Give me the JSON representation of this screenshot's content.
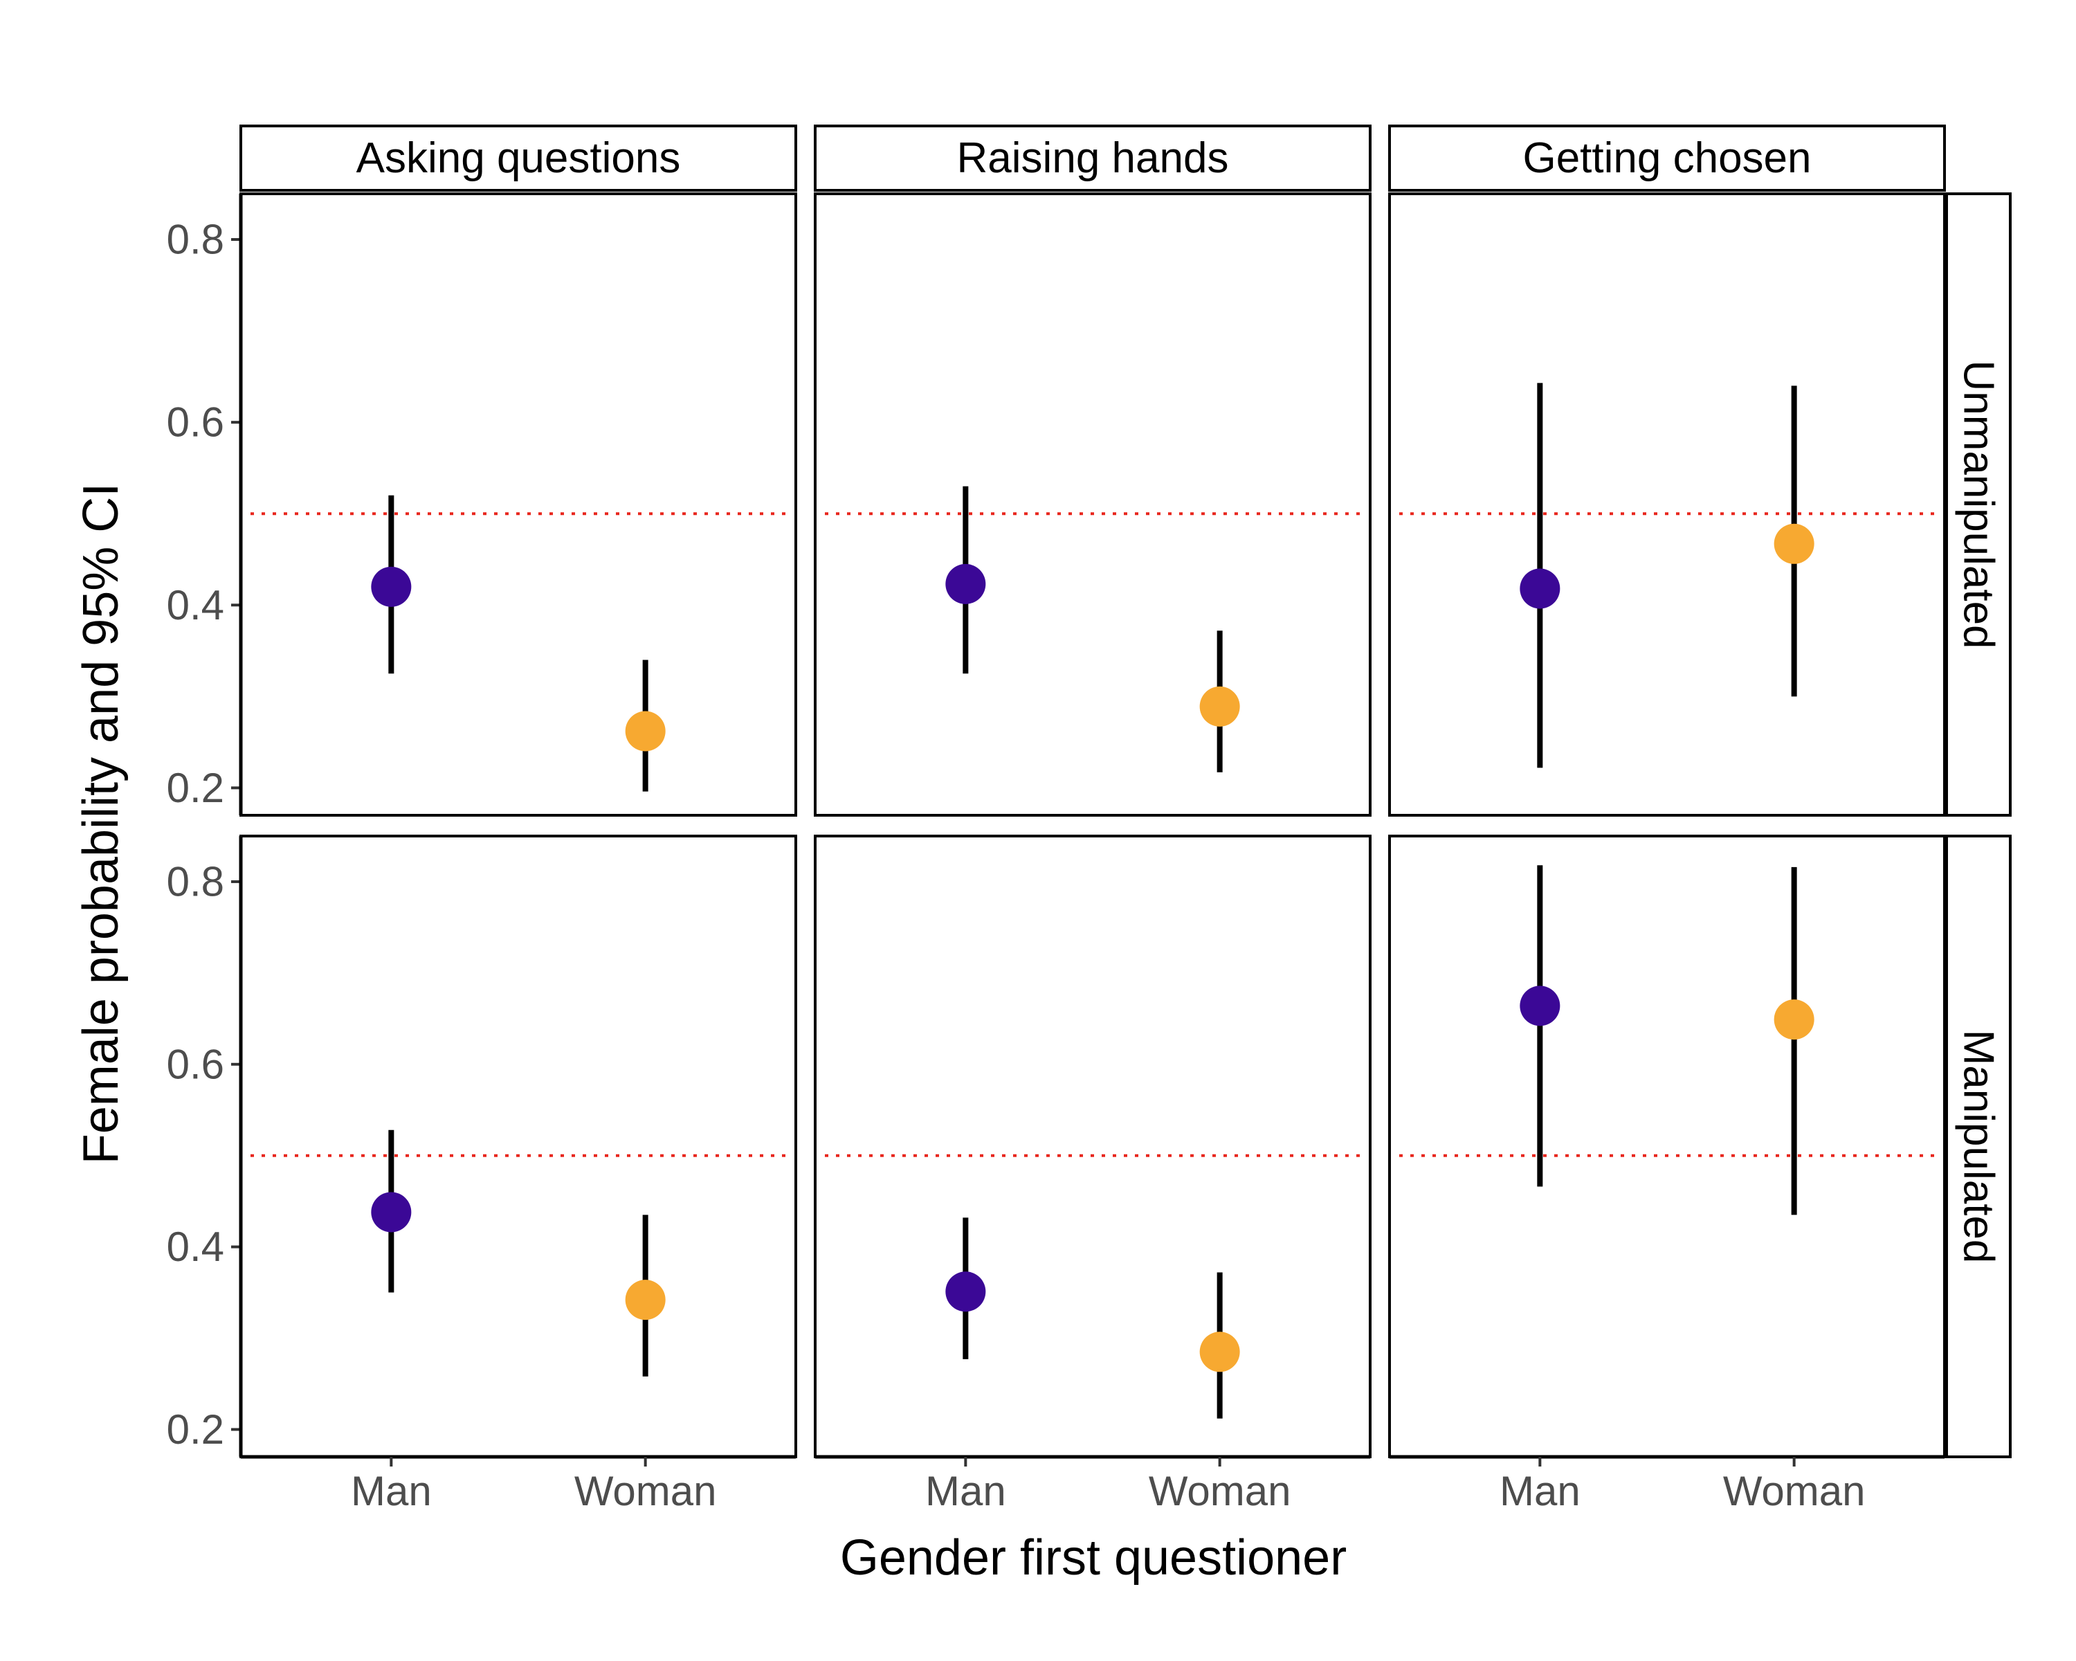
{
  "chart_data": {
    "type": "scatter",
    "subtype": "point-with-error-bars, faceted grid",
    "xlabel": "Gender first questioner",
    "ylabel": "Female probability and 95% CI",
    "categories": [
      "Man",
      "Woman"
    ],
    "col_facets": [
      "Asking questions",
      "Raising hands",
      "Getting chosen"
    ],
    "row_facets": [
      "Unmanipulated",
      "Manipulated"
    ],
    "ylim": [
      0.17,
      0.85
    ],
    "yticks": [
      0.2,
      0.4,
      0.6,
      0.8
    ],
    "ytick_labels": [
      "0.2",
      "0.4",
      "0.6",
      "0.8"
    ],
    "reference_line": 0.5,
    "grid": false,
    "colors": {
      "Man": "#3b0896",
      "Woman": "#f7a931",
      "reference": "#e8261c"
    },
    "panels": [
      {
        "col": "Asking questions",
        "row": "Unmanipulated",
        "points": [
          {
            "x": "Man",
            "y": 0.42,
            "lo": 0.325,
            "hi": 0.52
          },
          {
            "x": "Woman",
            "y": 0.262,
            "lo": 0.196,
            "hi": 0.34
          }
        ]
      },
      {
        "col": "Raising hands",
        "row": "Unmanipulated",
        "points": [
          {
            "x": "Man",
            "y": 0.423,
            "lo": 0.325,
            "hi": 0.53
          },
          {
            "x": "Woman",
            "y": 0.289,
            "lo": 0.217,
            "hi": 0.372
          }
        ]
      },
      {
        "col": "Getting chosen",
        "row": "Unmanipulated",
        "points": [
          {
            "x": "Man",
            "y": 0.418,
            "lo": 0.222,
            "hi": 0.643
          },
          {
            "x": "Woman",
            "y": 0.467,
            "lo": 0.3,
            "hi": 0.64
          }
        ]
      },
      {
        "col": "Asking questions",
        "row": "Manipulated",
        "points": [
          {
            "x": "Man",
            "y": 0.438,
            "lo": 0.35,
            "hi": 0.528
          },
          {
            "x": "Woman",
            "y": 0.342,
            "lo": 0.258,
            "hi": 0.435
          }
        ]
      },
      {
        "col": "Raising hands",
        "row": "Manipulated",
        "points": [
          {
            "x": "Man",
            "y": 0.351,
            "lo": 0.277,
            "hi": 0.432
          },
          {
            "x": "Woman",
            "y": 0.285,
            "lo": 0.212,
            "hi": 0.372
          }
        ]
      },
      {
        "col": "Getting chosen",
        "row": "Manipulated",
        "points": [
          {
            "x": "Man",
            "y": 0.664,
            "lo": 0.466,
            "hi": 0.818
          },
          {
            "x": "Woman",
            "y": 0.649,
            "lo": 0.435,
            "hi": 0.816
          }
        ]
      }
    ]
  }
}
